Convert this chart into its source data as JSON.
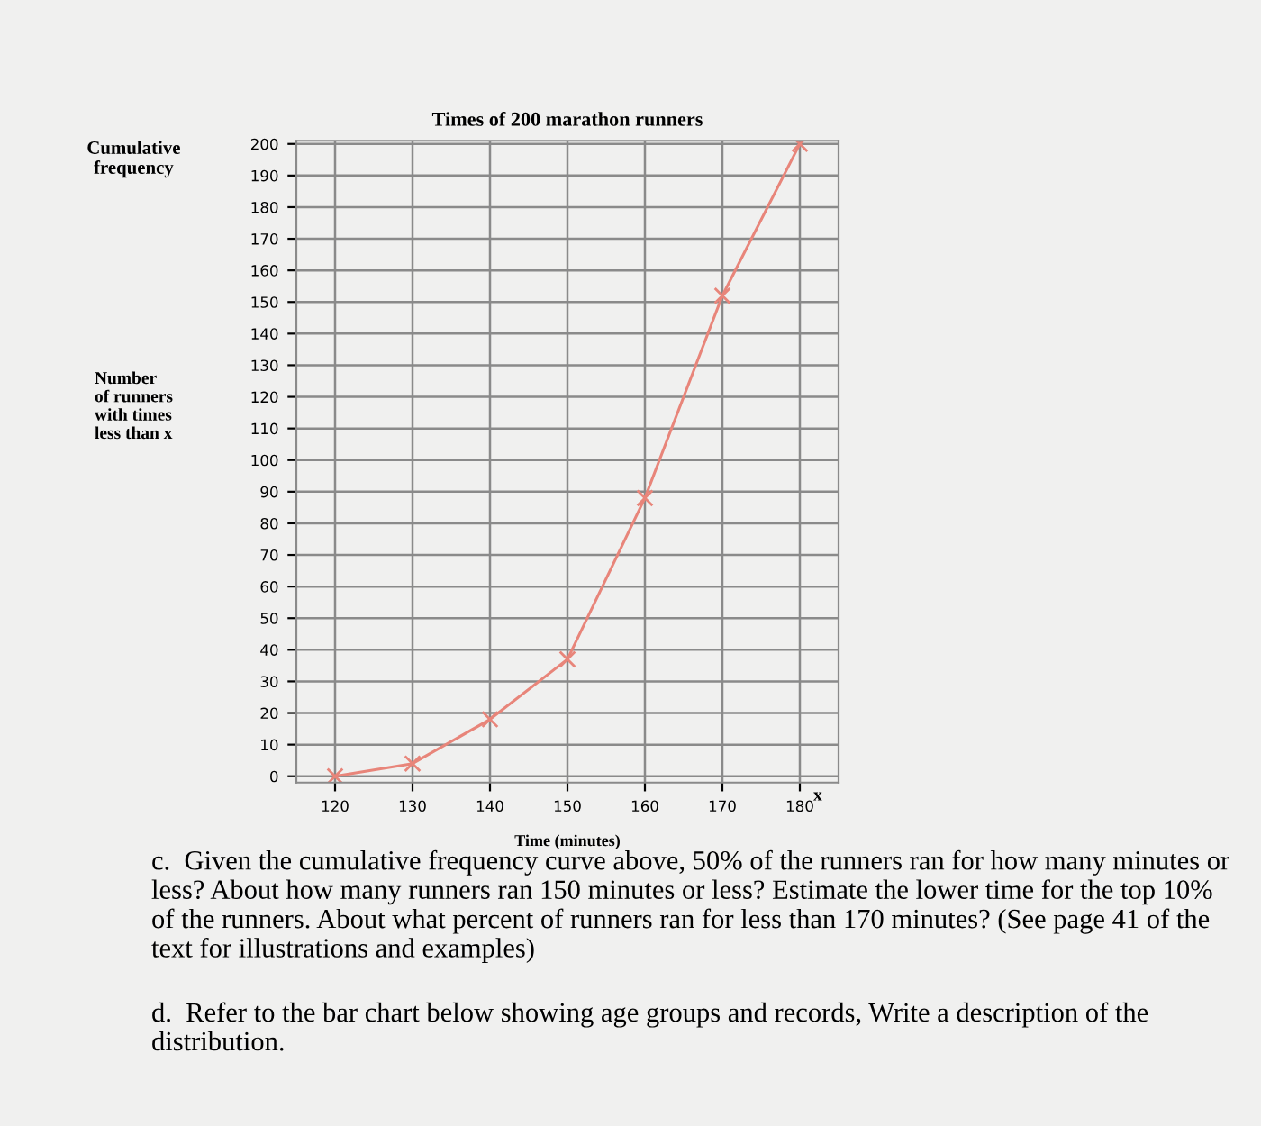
{
  "chart_data": {
    "type": "line",
    "title": "Times of 200 marathon runners",
    "xlabel": "Time (minutes)",
    "ylabel": "Cumulative frequency",
    "x": [
      120,
      130,
      140,
      150,
      160,
      170,
      180
    ],
    "series": [
      {
        "color": "#e8857a",
        "values": [
          0,
          4,
          18,
          37,
          88,
          152,
          200
        ]
      }
    ],
    "xlim": [
      115,
      185
    ],
    "xticks": [
      120,
      130,
      140,
      150,
      160,
      170,
      180
    ],
    "ylim": [
      -2,
      201
    ],
    "yticks": [
      0,
      10,
      20,
      30,
      40,
      50,
      60,
      70,
      80,
      90,
      100,
      110,
      120,
      130,
      140,
      150,
      160,
      170,
      180,
      190,
      200
    ],
    "grid": true,
    "marker": "cross",
    "line_style": "solid",
    "annotations": [
      "Number\nof runners\nwith times\nless than x",
      "x",
      "c.  Given the cumulative frequency curve above, 50% of the runners ran for how many minutes or less? About how many runners ran 150 minutes or less? Estimate the lower time for the top 10% of the runners. About what percent of runners ran for less than 170 minutes? (See page 41 of the text for illustrations and examples)",
      "d.  Refer to the bar chart below showing age groups and records, Write a description of the distribution."
    ]
  }
}
